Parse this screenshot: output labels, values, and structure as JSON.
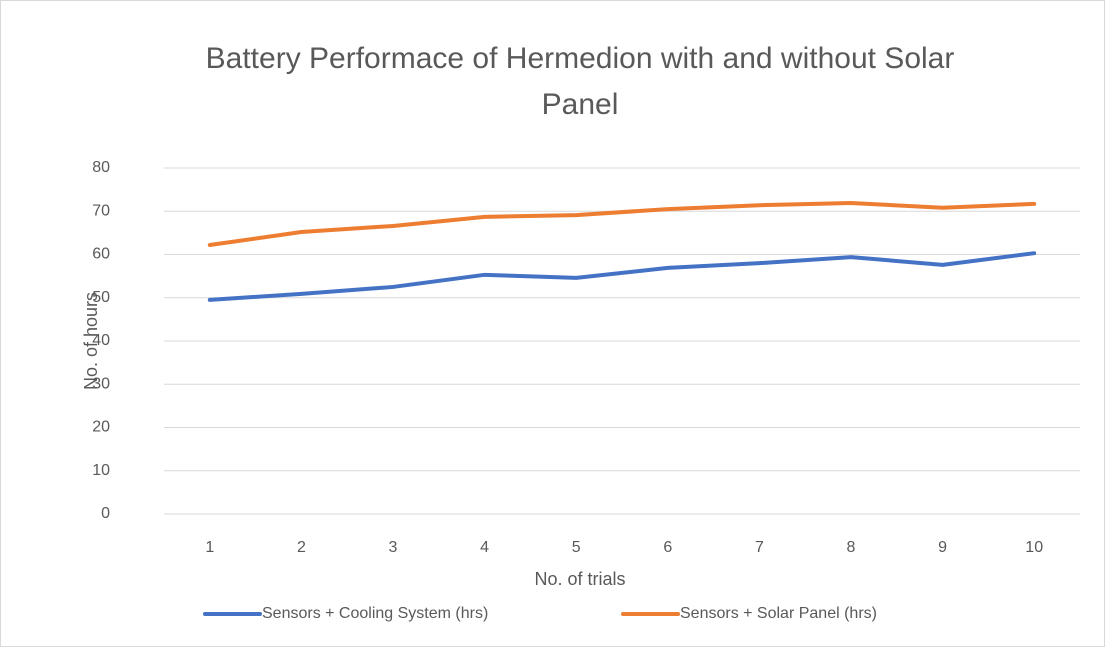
{
  "chart_data": {
    "type": "line",
    "title": "Battery Performace of Hermedion with and without Solar Panel",
    "x_label": "No. of trials",
    "y_label": "No. of hours",
    "categories": [
      "1",
      "2",
      "3",
      "4",
      "5",
      "6",
      "7",
      "8",
      "9",
      "10"
    ],
    "series": [
      {
        "name": "Sensors + Cooling System (hrs)",
        "color": "#4472c4",
        "values": [
          49.5,
          50.9,
          52.5,
          55.3,
          54.6,
          56.9,
          58,
          59.4,
          57.6,
          60.3
        ]
      },
      {
        "name": "Sensors + Solar Panel (hrs)",
        "color": "#ed7d31",
        "values": [
          62.2,
          65.2,
          66.6,
          68.7,
          69.1,
          70.5,
          71.4,
          71.9,
          70.8,
          71.7
        ]
      }
    ],
    "ylim": [
      0,
      80
    ],
    "yticks": [
      0,
      10,
      20,
      30,
      40,
      50,
      60,
      70,
      80
    ],
    "grid": true,
    "legend": "bottom"
  }
}
